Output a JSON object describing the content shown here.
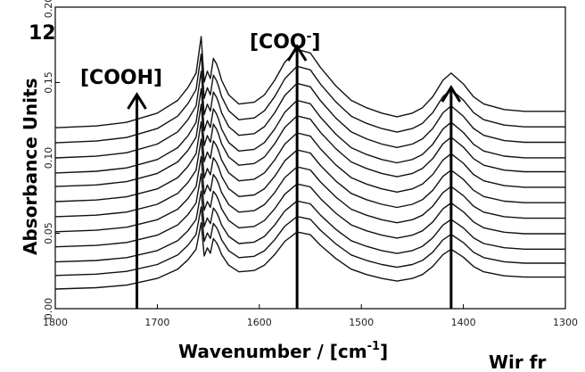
{
  "chart_data": {
    "type": "line",
    "xlabel_main": "Wavenumber / [cm",
    "xlabel_sup": "-1",
    "xlabel_tail": "]",
    "ylabel": "Absorbance Units",
    "xlim": [
      1800,
      1300
    ],
    "ylim": [
      0.0,
      0.2
    ],
    "x_ticks": [
      "1800",
      "1700",
      "1600",
      "1500",
      "1400",
      "1300"
    ],
    "y_ticks": [
      "0.00",
      "0.05",
      "0.10",
      "0.15",
      "0.20"
    ],
    "clipped_top_left": "12",
    "clipped_bottom_right": "Wir fr",
    "annotations": {
      "cooh": {
        "label": "[COOH]",
        "x": 1720
      },
      "coo": {
        "label_main": "[COO",
        "label_sup": "-",
        "label_tail": "]",
        "x": 1563
      },
      "third": {
        "x": 1412
      }
    },
    "series_offsets": [
      0.013,
      0.022,
      0.031,
      0.041,
      0.051,
      0.061,
      0.071,
      0.081,
      0.09,
      0.1,
      0.11,
      0.12
    ],
    "series_template": {
      "x": [
        1800,
        1760,
        1730,
        1700,
        1680,
        1670,
        1662,
        1657,
        1654,
        1651,
        1648,
        1645,
        1642,
        1640,
        1637,
        1630,
        1620,
        1605,
        1595,
        1585,
        1575,
        1563,
        1550,
        1540,
        1525,
        1510,
        1495,
        1480,
        1465,
        1450,
        1440,
        1430,
        1420,
        1412,
        1400,
        1390,
        1380,
        1360,
        1340,
        1320,
        1300
      ],
      "y": [
        0.0,
        0.001,
        0.003,
        0.008,
        0.015,
        0.022,
        0.03,
        0.05,
        0.025,
        0.031,
        0.027,
        0.038,
        0.035,
        0.032,
        0.026,
        0.018,
        0.013,
        0.014,
        0.018,
        0.026,
        0.036,
        0.043,
        0.041,
        0.033,
        0.023,
        0.015,
        0.011,
        0.008,
        0.006,
        0.008,
        0.011,
        0.017,
        0.026,
        0.03,
        0.024,
        0.017,
        0.013,
        0.01,
        0.009,
        0.009,
        0.009
      ]
    }
  }
}
